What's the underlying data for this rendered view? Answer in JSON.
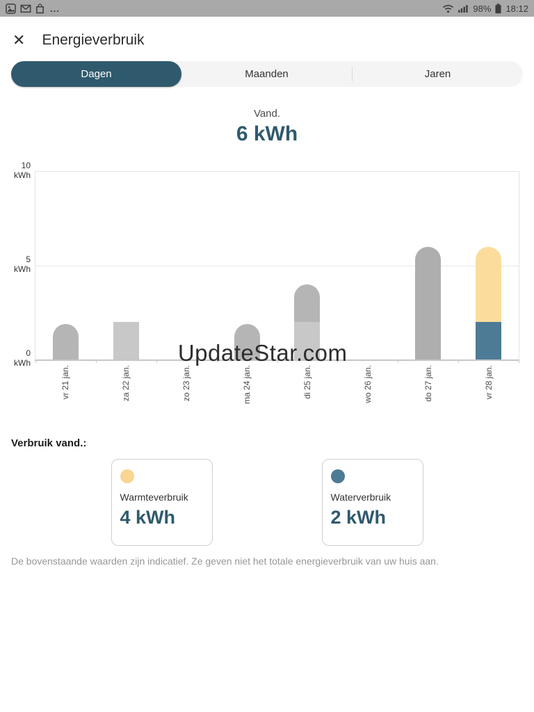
{
  "status_bar": {
    "left_icons": [
      "gallery-icon",
      "gmail-icon",
      "bag-icon"
    ],
    "more_label": "...",
    "right_icons": [
      "wifi-icon",
      "signal-icon",
      "battery-icon"
    ],
    "battery_percent": "98%",
    "time": "18:12"
  },
  "header": {
    "title": "Energieverbruik",
    "close_glyph": "✕"
  },
  "tabs": [
    {
      "label": "Dagen",
      "active": true
    },
    {
      "label": "Maanden",
      "active": false
    },
    {
      "label": "Jaren",
      "active": false
    }
  ],
  "summary": {
    "period_label": "Vand.",
    "total_value": "6 kWh"
  },
  "chart_data": {
    "type": "bar",
    "stacked": true,
    "title": "",
    "xlabel": "",
    "ylabel": "kWh",
    "ylim": [
      0,
      10
    ],
    "grid": true,
    "y_ticks": [
      {
        "value": 10,
        "label": "10",
        "unit": "kWh"
      },
      {
        "value": 5,
        "label": "5",
        "unit": "kWh"
      },
      {
        "value": 0,
        "label": "0",
        "unit": "kWh"
      }
    ],
    "categories": [
      "vr 21 jan.",
      "za 22 jan.",
      "zo 23 jan.",
      "ma 24 jan.",
      "di 25 jan.",
      "wo 26 jan.",
      "do 27 jan.",
      "vr 28 jan."
    ],
    "bars": [
      {
        "label": "vr 21 jan.",
        "rounded_top": true,
        "segments": [
          {
            "name": "verbruik",
            "value": 1.9,
            "color": "#b5b5b5"
          }
        ]
      },
      {
        "label": "za 22 jan.",
        "rounded_top": false,
        "segments": [
          {
            "name": "verbruik",
            "value": 2.0,
            "color": "#c8c8c8"
          }
        ]
      },
      {
        "label": "zo 23 jan.",
        "rounded_top": false,
        "segments": []
      },
      {
        "label": "ma 24 jan.",
        "rounded_top": true,
        "segments": [
          {
            "name": "verbruik",
            "value": 1.9,
            "color": "#b5b5b5"
          }
        ]
      },
      {
        "label": "di 25 jan.",
        "rounded_top": true,
        "segments": [
          {
            "name": "verbruik-laag",
            "value": 2.0,
            "color": "#c8c8c8"
          },
          {
            "name": "verbruik-hoog",
            "value": 2.0,
            "color": "#b5b5b5"
          }
        ]
      },
      {
        "label": "wo 26 jan.",
        "rounded_top": false,
        "segments": []
      },
      {
        "label": "do 27 jan.",
        "rounded_top": true,
        "segments": [
          {
            "name": "verbruik",
            "value": 6.0,
            "color": "#aeaeae"
          }
        ]
      },
      {
        "label": "vr 28 jan.",
        "rounded_top": true,
        "segments": [
          {
            "name": "waterverbruik",
            "value": 2.0,
            "color": "#4d7a94"
          },
          {
            "name": "warmteverbruik",
            "value": 4.0,
            "color": "#fbdc9d"
          }
        ]
      }
    ],
    "watermark": "UpdateStar.com",
    "legend_position": "below"
  },
  "legend": {
    "heading": "Verbruik vand.:",
    "cards": [
      {
        "name": "warmteverbruik",
        "label": "Warmteverbruik",
        "value": "4 kWh",
        "dot_color": "#f8d592"
      },
      {
        "name": "waterverbruik",
        "label": "Waterverbruik",
        "value": "2 kWh",
        "dot_color": "#4d7a94"
      }
    ]
  },
  "footnote": "De bovenstaande waarden zijn indicatief. Ze geven niet het totale energieverbruik van uw huis aan.",
  "colors": {
    "accent_teal": "#2f5a6d",
    "warmte_yellow": "#fbdc9d",
    "water_blue": "#4d7a94",
    "statusbar_gray": "#a9a9a9"
  }
}
